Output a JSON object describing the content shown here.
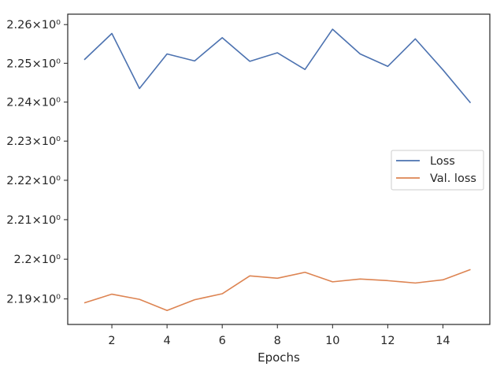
{
  "chart_data": {
    "type": "line",
    "xlabel": "Epochs",
    "ylabel": "",
    "title": "",
    "xlim": [
      0.4,
      15.7
    ],
    "ylim": [
      2.1836,
      2.2627
    ],
    "y_scale": "log",
    "grid": false,
    "legend_position": "center-right",
    "x_ticks": [
      2,
      4,
      6,
      8,
      10,
      12,
      14
    ],
    "x_tick_labels": [
      "2",
      "4",
      "6",
      "8",
      "10",
      "12",
      "14"
    ],
    "y_ticks": [
      2.19,
      2.2,
      2.21,
      2.22,
      2.23,
      2.24,
      2.25,
      2.26
    ],
    "y_tick_labels": [
      "2.19×10⁰",
      "2.2×10⁰",
      "2.21×10⁰",
      "2.22×10⁰",
      "2.23×10⁰",
      "2.24×10⁰",
      "2.25×10⁰",
      "2.26×10⁰"
    ],
    "x": [
      1,
      2,
      3,
      4,
      5,
      6,
      7,
      8,
      9,
      10,
      11,
      12,
      13,
      14,
      15
    ],
    "series": [
      {
        "name": "Loss",
        "color": "#4c72b0",
        "values": [
          2.2509,
          2.2577,
          2.2435,
          2.2524,
          2.2506,
          2.2566,
          2.2505,
          2.2527,
          2.2484,
          2.2588,
          2.2524,
          2.2492,
          2.2563,
          2.2483,
          2.2398
        ]
      },
      {
        "name": "Val. loss",
        "color": "#dd8452",
        "values": [
          2.189,
          2.1912,
          2.1899,
          2.1871,
          2.1898,
          2.1913,
          2.1958,
          2.1952,
          2.1967,
          2.1943,
          2.195,
          2.1946,
          2.194,
          2.1948,
          2.1974
        ]
      }
    ]
  }
}
